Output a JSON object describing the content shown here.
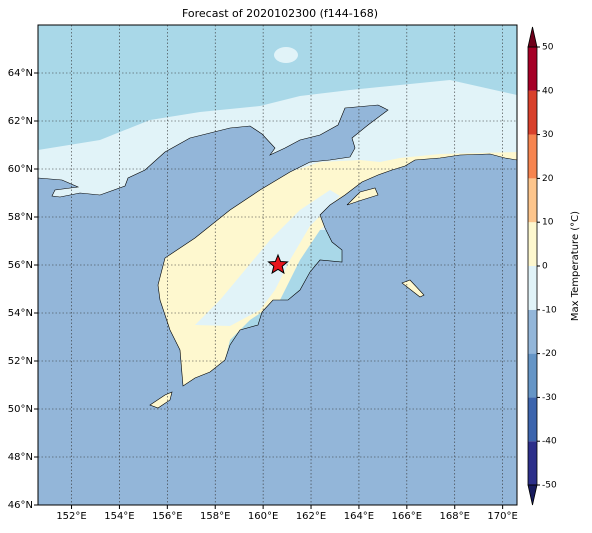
{
  "chart_data": {
    "type": "contour-map",
    "title": "Forecast of 2020102300 (f144-168)",
    "xlim": [
      150.6,
      170.6
    ],
    "ylim": [
      46,
      66
    ],
    "xticks": [
      {
        "value": 152,
        "label": "152°E"
      },
      {
        "value": 154,
        "label": "154°E"
      },
      {
        "value": 156,
        "label": "156°E"
      },
      {
        "value": 158,
        "label": "158°E"
      },
      {
        "value": 160,
        "label": "160°E"
      },
      {
        "value": 162,
        "label": "162°E"
      },
      {
        "value": 164,
        "label": "164°E"
      },
      {
        "value": 166,
        "label": "166°E"
      },
      {
        "value": 168,
        "label": "168°E"
      },
      {
        "value": 170,
        "label": "170°E"
      }
    ],
    "yticks": [
      {
        "value": 46,
        "label": "46°N"
      },
      {
        "value": 48,
        "label": "48°N"
      },
      {
        "value": 50,
        "label": "50°N"
      },
      {
        "value": 52,
        "label": "52°N"
      },
      {
        "value": 54,
        "label": "54°N"
      },
      {
        "value": 56,
        "label": "56°N"
      },
      {
        "value": 58,
        "label": "58°N"
      },
      {
        "value": 60,
        "label": "60°N"
      },
      {
        "value": 62,
        "label": "62°N"
      },
      {
        "value": 64,
        "label": "64°N"
      }
    ],
    "grid": true,
    "colorbar": {
      "label": "Max Temperature (°C)",
      "lim": [
        -50,
        50
      ],
      "ticks": [
        -50,
        -40,
        -30,
        -20,
        -10,
        0,
        10,
        20,
        30,
        40,
        50
      ],
      "colors": [
        "#2c2f8a",
        "#3c64ad",
        "#6595c6",
        "#93b6d9",
        "#e1f3f8",
        "#fef8cf",
        "#fdc58c",
        "#f6844f",
        "#d8402b",
        "#a50026"
      ],
      "extend_colors": [
        "#171b5e",
        "#6e001a"
      ]
    }
  }
}
